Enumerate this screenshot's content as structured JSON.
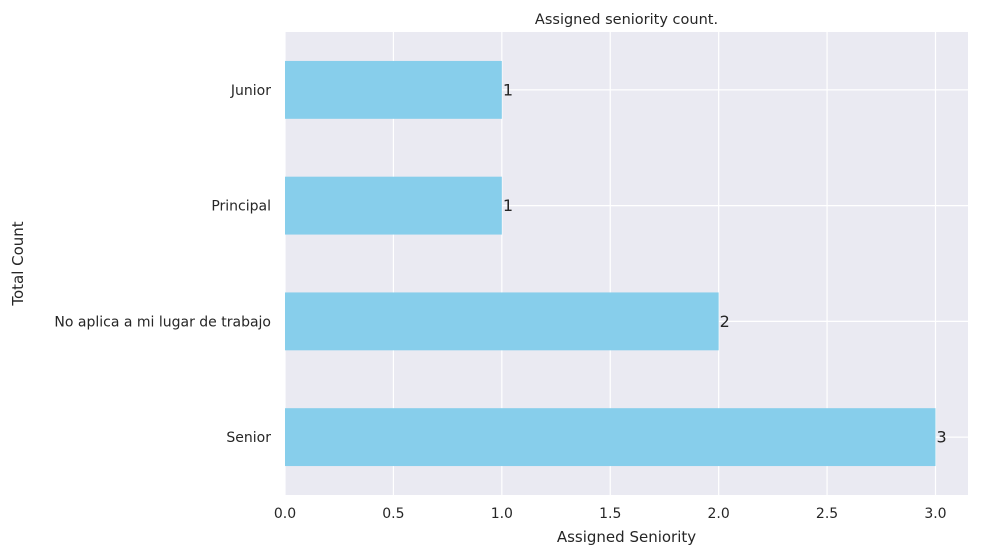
{
  "chart_data": {
    "type": "bar",
    "orientation": "horizontal",
    "title": "Assigned seniority count.",
    "xlabel": "Assigned Seniority",
    "ylabel": "Total Count",
    "categories": [
      "Senior",
      "No aplica a mi lugar de trabajo",
      "Principal",
      "Junior"
    ],
    "values": [
      3,
      2,
      1,
      1
    ],
    "data_labels": [
      "3",
      "2",
      "1",
      "1"
    ],
    "xlim": [
      0,
      3.15
    ],
    "xticks": [
      0.0,
      0.5,
      1.0,
      1.5,
      2.0,
      2.5,
      3.0
    ],
    "xtick_labels": [
      "0.0",
      "0.5",
      "1.0",
      "1.5",
      "2.0",
      "2.5",
      "3.0"
    ],
    "grid": true,
    "legend": "none",
    "colors": {
      "bar": "#87ceeb",
      "plot_background": "#eaeaf2",
      "grid": "#ffffff",
      "text": "#262626"
    }
  }
}
